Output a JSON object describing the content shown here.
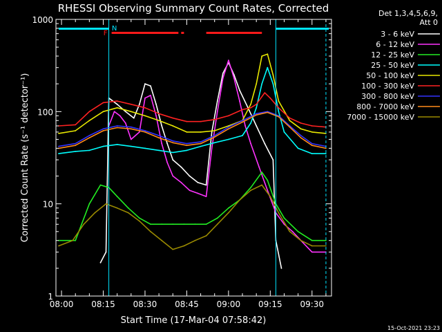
{
  "chart_data": {
    "type": "line",
    "title": "RHESSI Observing Summary Count Rates, Corrected",
    "xlabel": "Start Time (17-Mar-04 07:58:42)",
    "ylabel": "Corrected Count Rate (s⁻¹ detector⁻¹)",
    "yscale": "log",
    "ylim": [
      1,
      1000
    ],
    "xlim": [
      "07:58",
      "09:37"
    ],
    "x_ticks": [
      "08:00",
      "08:15",
      "08:30",
      "08:45",
      "09:00",
      "09:15",
      "09:30"
    ],
    "y_ticks": [
      "1",
      "10",
      "100",
      "1000"
    ],
    "timestamp": "15-Oct-2021 23:23",
    "legend": {
      "header": [
        "Det 1,3,4,5,6,9,",
        "Att 0"
      ],
      "placement": "right"
    },
    "colors": {
      "background": "#000000",
      "axes": "#ffffff",
      "markers_cyan": "#00e5ff",
      "flag_red": "#ff1a1a"
    },
    "flags": {
      "night_label": "N",
      "flare_label": "F",
      "night_intervals": [
        [
          "07:59",
          "08:17"
        ],
        [
          "09:17",
          "09:36"
        ]
      ],
      "flare_intervals": [
        [
          "08:18",
          "08:42"
        ],
        [
          "08:43",
          "08:44"
        ],
        [
          "08:52",
          "09:12"
        ]
      ],
      "boundaries": [
        "08:17",
        "09:17"
      ],
      "dashed_boundaries": [
        "09:35"
      ]
    },
    "series": [
      {
        "name": "3 - 6 keV",
        "color": "#ffffff",
        "points": [
          [
            "08:14",
            2.3
          ],
          [
            "08:16",
            3
          ],
          [
            "08:17",
            140
          ],
          [
            "08:20",
            120
          ],
          [
            "08:23",
            100
          ],
          [
            "08:26",
            85
          ],
          [
            "08:28",
            120
          ],
          [
            "08:30",
            200
          ],
          [
            "08:32",
            190
          ],
          [
            "08:34",
            120
          ],
          [
            "08:36",
            70
          ],
          [
            "08:38",
            45
          ],
          [
            "08:40",
            30
          ],
          [
            "08:43",
            25
          ],
          [
            "08:46",
            20
          ],
          [
            "08:49",
            17
          ],
          [
            "08:52",
            16
          ],
          [
            "08:54",
            60
          ],
          [
            "08:56",
            130
          ],
          [
            "08:58",
            260
          ],
          [
            "09:00",
            340
          ],
          [
            "09:02",
            250
          ],
          [
            "09:04",
            170
          ],
          [
            "09:07",
            110
          ],
          [
            "09:10",
            70
          ],
          [
            "09:13",
            45
          ],
          [
            "09:16",
            30
          ],
          [
            "09:17",
            4
          ],
          [
            "09:19",
            2
          ]
        ]
      },
      {
        "name": "6 - 12 keV",
        "color": "#ff33ff",
        "points": [
          [
            "08:17",
            70
          ],
          [
            "08:19",
            100
          ],
          [
            "08:21",
            90
          ],
          [
            "08:23",
            75
          ],
          [
            "08:25",
            50
          ],
          [
            "08:28",
            60
          ],
          [
            "08:30",
            140
          ],
          [
            "08:32",
            150
          ],
          [
            "08:34",
            90
          ],
          [
            "08:36",
            45
          ],
          [
            "08:38",
            28
          ],
          [
            "08:40",
            20
          ],
          [
            "08:43",
            17
          ],
          [
            "08:46",
            14
          ],
          [
            "08:49",
            13
          ],
          [
            "08:52",
            12
          ],
          [
            "08:54",
            40
          ],
          [
            "08:56",
            100
          ],
          [
            "08:58",
            230
          ],
          [
            "09:00",
            360
          ],
          [
            "09:02",
            230
          ],
          [
            "09:04",
            130
          ],
          [
            "09:06",
            70
          ],
          [
            "09:08",
            45
          ],
          [
            "09:11",
            25
          ],
          [
            "09:14",
            14
          ],
          [
            "09:17",
            8
          ],
          [
            "09:20",
            6
          ],
          [
            "09:23",
            5
          ],
          [
            "09:26",
            4
          ],
          [
            "09:30",
            3
          ],
          [
            "09:35",
            3
          ]
        ]
      },
      {
        "name": "12 - 25 keV",
        "color": "#22ee22",
        "points": [
          [
            "07:59",
            4
          ],
          [
            "08:05",
            4
          ],
          [
            "08:10",
            10
          ],
          [
            "08:14",
            16
          ],
          [
            "08:17",
            15
          ],
          [
            "08:20",
            12
          ],
          [
            "08:24",
            9
          ],
          [
            "08:28",
            7
          ],
          [
            "08:32",
            6
          ],
          [
            "08:36",
            6
          ],
          [
            "08:40",
            6
          ],
          [
            "08:44",
            6
          ],
          [
            "08:48",
            6
          ],
          [
            "08:52",
            6
          ],
          [
            "08:56",
            7
          ],
          [
            "09:00",
            9
          ],
          [
            "09:04",
            11
          ],
          [
            "09:08",
            15
          ],
          [
            "09:12",
            22
          ],
          [
            "09:14",
            18
          ],
          [
            "09:17",
            10
          ],
          [
            "09:20",
            7
          ],
          [
            "09:25",
            5
          ],
          [
            "09:30",
            4
          ],
          [
            "09:35",
            4
          ]
        ]
      },
      {
        "name": "25 - 50 keV",
        "color": "#00ffff",
        "points": [
          [
            "07:59",
            35
          ],
          [
            "08:05",
            37
          ],
          [
            "08:10",
            38
          ],
          [
            "08:15",
            42
          ],
          [
            "08:20",
            44
          ],
          [
            "08:25",
            42
          ],
          [
            "08:30",
            40
          ],
          [
            "08:35",
            38
          ],
          [
            "08:40",
            36
          ],
          [
            "08:45",
            38
          ],
          [
            "08:50",
            42
          ],
          [
            "08:55",
            46
          ],
          [
            "09:00",
            50
          ],
          [
            "09:05",
            55
          ],
          [
            "09:08",
            75
          ],
          [
            "09:10",
            110
          ],
          [
            "09:12",
            200
          ],
          [
            "09:14",
            300
          ],
          [
            "09:16",
            200
          ],
          [
            "09:18",
            100
          ],
          [
            "09:20",
            60
          ],
          [
            "09:25",
            40
          ],
          [
            "09:30",
            35
          ],
          [
            "09:35",
            35
          ]
        ]
      },
      {
        "name": "50 - 100 keV",
        "color": "#e8e800",
        "points": [
          [
            "07:59",
            58
          ],
          [
            "08:05",
            62
          ],
          [
            "08:10",
            80
          ],
          [
            "08:15",
            100
          ],
          [
            "08:20",
            110
          ],
          [
            "08:25",
            100
          ],
          [
            "08:30",
            90
          ],
          [
            "08:35",
            80
          ],
          [
            "08:40",
            70
          ],
          [
            "08:45",
            60
          ],
          [
            "08:50",
            60
          ],
          [
            "08:55",
            62
          ],
          [
            "09:00",
            70
          ],
          [
            "09:05",
            80
          ],
          [
            "09:08",
            120
          ],
          [
            "09:10",
            200
          ],
          [
            "09:12",
            400
          ],
          [
            "09:14",
            420
          ],
          [
            "09:16",
            250
          ],
          [
            "09:18",
            130
          ],
          [
            "09:22",
            80
          ],
          [
            "09:26",
            65
          ],
          [
            "09:30",
            60
          ],
          [
            "09:35",
            58
          ]
        ]
      },
      {
        "name": "100 - 300 keV",
        "color": "#ff2222",
        "points": [
          [
            "07:59",
            70
          ],
          [
            "08:05",
            72
          ],
          [
            "08:10",
            100
          ],
          [
            "08:15",
            125
          ],
          [
            "08:20",
            130
          ],
          [
            "08:25",
            120
          ],
          [
            "08:30",
            110
          ],
          [
            "08:35",
            95
          ],
          [
            "08:40",
            85
          ],
          [
            "08:45",
            78
          ],
          [
            "08:50",
            78
          ],
          [
            "08:55",
            82
          ],
          [
            "09:00",
            90
          ],
          [
            "09:05",
            105
          ],
          [
            "09:08",
            110
          ],
          [
            "09:10",
            120
          ],
          [
            "09:13",
            160
          ],
          [
            "09:15",
            140
          ],
          [
            "09:18",
            110
          ],
          [
            "09:22",
            85
          ],
          [
            "09:26",
            75
          ],
          [
            "09:30",
            70
          ],
          [
            "09:35",
            68
          ]
        ]
      },
      {
        "name": "300 - 800 keV",
        "color": "#3333ff",
        "points": [
          [
            "07:59",
            42
          ],
          [
            "08:05",
            45
          ],
          [
            "08:10",
            55
          ],
          [
            "08:15",
            65
          ],
          [
            "08:20",
            70
          ],
          [
            "08:25",
            68
          ],
          [
            "08:30",
            62
          ],
          [
            "08:35",
            55
          ],
          [
            "08:40",
            48
          ],
          [
            "08:45",
            45
          ],
          [
            "08:50",
            47
          ],
          [
            "08:55",
            55
          ],
          [
            "09:00",
            68
          ],
          [
            "09:05",
            80
          ],
          [
            "09:10",
            95
          ],
          [
            "09:14",
            100
          ],
          [
            "09:18",
            90
          ],
          [
            "09:22",
            70
          ],
          [
            "09:26",
            55
          ],
          [
            "09:30",
            45
          ],
          [
            "09:35",
            42
          ]
        ]
      },
      {
        "name": "800 - 7000 keV",
        "color": "#ff8c1a",
        "points": [
          [
            "07:59",
            40
          ],
          [
            "08:05",
            43
          ],
          [
            "08:10",
            52
          ],
          [
            "08:15",
            62
          ],
          [
            "08:20",
            67
          ],
          [
            "08:25",
            65
          ],
          [
            "08:30",
            60
          ],
          [
            "08:35",
            52
          ],
          [
            "08:40",
            46
          ],
          [
            "08:45",
            43
          ],
          [
            "08:50",
            45
          ],
          [
            "08:55",
            53
          ],
          [
            "09:00",
            65
          ],
          [
            "09:05",
            77
          ],
          [
            "09:10",
            92
          ],
          [
            "09:14",
            98
          ],
          [
            "09:18",
            88
          ],
          [
            "09:22",
            68
          ],
          [
            "09:26",
            52
          ],
          [
            "09:30",
            43
          ],
          [
            "09:35",
            40
          ]
        ]
      },
      {
        "name": "7000 - 15000 keV",
        "color": "#9a8a00",
        "points": [
          [
            "07:59",
            3.5
          ],
          [
            "08:04",
            4
          ],
          [
            "08:08",
            6
          ],
          [
            "08:12",
            8
          ],
          [
            "08:16",
            10
          ],
          [
            "08:20",
            9
          ],
          [
            "08:24",
            8
          ],
          [
            "08:28",
            6.5
          ],
          [
            "08:32",
            5
          ],
          [
            "08:36",
            4
          ],
          [
            "08:40",
            3.2
          ],
          [
            "08:44",
            3.5
          ],
          [
            "08:48",
            4
          ],
          [
            "08:52",
            4.5
          ],
          [
            "08:56",
            6
          ],
          [
            "09:00",
            8
          ],
          [
            "09:04",
            11
          ],
          [
            "09:08",
            14
          ],
          [
            "09:12",
            16
          ],
          [
            "09:15",
            12
          ],
          [
            "09:18",
            8
          ],
          [
            "09:22",
            5
          ],
          [
            "09:26",
            4
          ],
          [
            "09:30",
            3.5
          ],
          [
            "09:35",
            3.5
          ]
        ]
      }
    ]
  }
}
